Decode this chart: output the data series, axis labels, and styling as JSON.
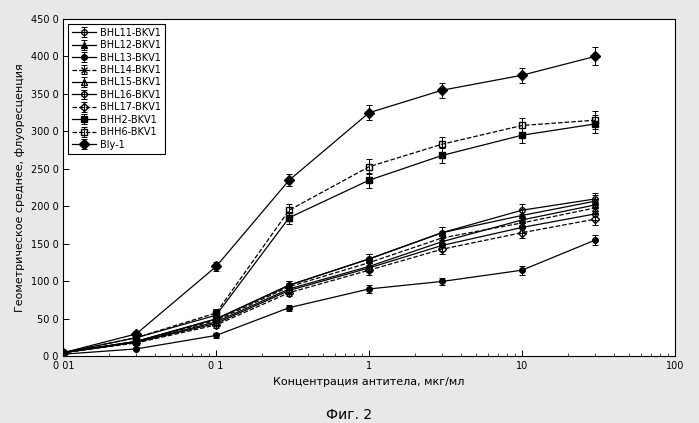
{
  "xlabel": "Концентрация антитела, мкг/мл",
  "ylabel": "Геометрическое среднее, флуоресценция",
  "caption": "Фиг. 2",
  "xlim": [
    0.01,
    100
  ],
  "ylim": [
    0,
    450
  ],
  "yticks": [
    0,
    50,
    100,
    150,
    200,
    250,
    300,
    350,
    400,
    450
  ],
  "ytick_labels": [
    "0 0",
    "50 0",
    "100 0",
    "150 0",
    "200 0",
    "250 0",
    "300 0",
    "350 0",
    "400 0",
    "450 0"
  ],
  "x": [
    0.01,
    0.03,
    0.1,
    0.3,
    1.0,
    3.0,
    10.0,
    30.0
  ],
  "series": {
    "BHL11-BKV1": {
      "y": [
        5,
        20,
        50,
        95,
        130,
        165,
        195,
        210
      ],
      "yerr": [
        1,
        3,
        4,
        5,
        6,
        7,
        8,
        8
      ],
      "style": "solid",
      "marker": "o",
      "markersize": 4,
      "fillstyle": "none",
      "color": "black",
      "label": "BHL11-BKV1"
    },
    "BHL12-BKV1": {
      "y": [
        5,
        20,
        50,
        95,
        130,
        165,
        188,
        207
      ],
      "yerr": [
        1,
        3,
        4,
        5,
        6,
        7,
        8,
        8
      ],
      "style": "solid",
      "marker": "^",
      "markersize": 4,
      "fillstyle": "full",
      "color": "black",
      "label": "BHL12-BKV1"
    },
    "BHL13-BKV1": {
      "y": [
        3,
        10,
        28,
        65,
        90,
        100,
        115,
        155
      ],
      "yerr": [
        1,
        2,
        3,
        4,
        5,
        5,
        6,
        7
      ],
      "style": "solid",
      "marker": "o",
      "markersize": 4,
      "fillstyle": "full",
      "color": "black",
      "label": "BHL13-BKV1"
    },
    "BHL14-BKV1": {
      "y": [
        5,
        20,
        48,
        93,
        125,
        158,
        178,
        198
      ],
      "yerr": [
        1,
        3,
        4,
        5,
        6,
        7,
        7,
        8
      ],
      "style": "dashed",
      "marker": "x",
      "markersize": 5,
      "fillstyle": "full",
      "color": "black",
      "label": "BHL14-BKV1"
    },
    "BHL15-BKV1": {
      "y": [
        5,
        19,
        46,
        90,
        120,
        153,
        182,
        202
      ],
      "yerr": [
        1,
        3,
        4,
        5,
        6,
        7,
        8,
        8
      ],
      "style": "solid",
      "marker": "^",
      "markersize": 4,
      "fillstyle": "none",
      "color": "black",
      "label": "BHL15-BKV1"
    },
    "BHL16-BKV1": {
      "y": [
        5,
        19,
        44,
        88,
        118,
        148,
        172,
        190
      ],
      "yerr": [
        1,
        3,
        4,
        5,
        6,
        7,
        7,
        8
      ],
      "style": "solid",
      "marker": "o",
      "markersize": 4,
      "fillstyle": "none",
      "color": "black",
      "label": "BHL16-BKV1"
    },
    "BHL17-BKV1": {
      "y": [
        5,
        18,
        42,
        85,
        115,
        143,
        165,
        183
      ],
      "yerr": [
        1,
        3,
        4,
        5,
        6,
        7,
        7,
        8
      ],
      "style": "dashed",
      "marker": "D",
      "markersize": 4,
      "fillstyle": "none",
      "color": "black",
      "label": "BHL17-BKV1"
    },
    "BHH2-BKV1": {
      "y": [
        5,
        25,
        55,
        185,
        235,
        268,
        295,
        310
      ],
      "yerr": [
        1,
        3,
        5,
        8,
        10,
        10,
        10,
        12
      ],
      "style": "solid",
      "marker": "s",
      "markersize": 4,
      "fillstyle": "full",
      "color": "black",
      "label": "BHH2-BKV1"
    },
    "BHH6-BKV1": {
      "y": [
        5,
        25,
        58,
        195,
        253,
        283,
        308,
        315
      ],
      "yerr": [
        1,
        3,
        5,
        8,
        10,
        10,
        10,
        12
      ],
      "style": "dashed",
      "marker": "s",
      "markersize": 4,
      "fillstyle": "none",
      "color": "black",
      "label": "BHH6-BKV1"
    },
    "Bly-1": {
      "y": [
        5,
        30,
        120,
        235,
        325,
        355,
        375,
        400
      ],
      "yerr": [
        1,
        4,
        6,
        8,
        10,
        10,
        10,
        12
      ],
      "style": "solid",
      "marker": "D",
      "markersize": 5,
      "fillstyle": "full",
      "color": "black",
      "label": "Bly-1"
    }
  },
  "legend_order": [
    "BHL11-BKV1",
    "BHL12-BKV1",
    "BHL13-BKV1",
    "BHL14-BKV1",
    "BHL15-BKV1",
    "BHL16-BKV1",
    "BHL17-BKV1",
    "BHH2-BKV1",
    "BHH6-BKV1",
    "Bly-1"
  ],
  "bg_color": "#e8e8e8",
  "plot_bg": "#ffffff"
}
